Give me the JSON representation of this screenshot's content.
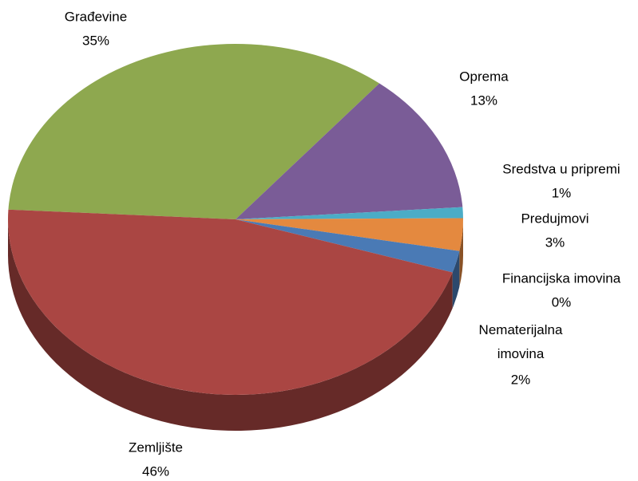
{
  "chart_data": {
    "type": "pie",
    "categories": [
      "Građevine",
      "Oprema",
      "Sredstva u pripremi",
      "Predujmovi",
      "Financijska imovina",
      "Nematerijalna imovina",
      "Zemljište"
    ],
    "values": [
      35,
      13,
      1,
      3,
      0,
      2,
      46
    ],
    "value_labels": [
      "35%",
      "13%",
      "1%",
      "3%",
      "0%",
      "2%",
      "46%"
    ],
    "colors": [
      "#8ea84f",
      "#7a5c97",
      "#4bacc6",
      "#e4893f",
      "#c0504d",
      "#4a7ab5",
      "#aa4643"
    ]
  }
}
